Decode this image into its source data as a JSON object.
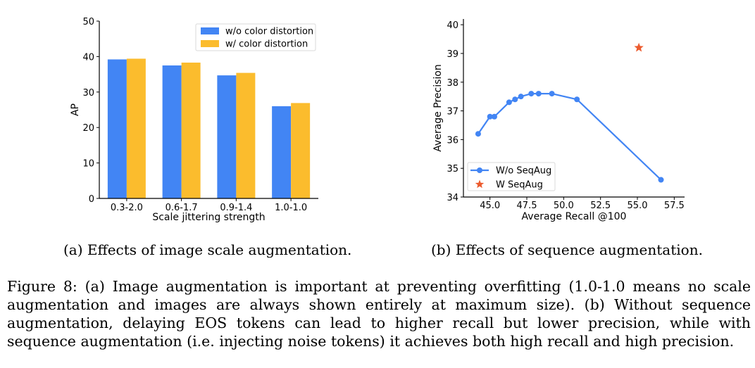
{
  "chart_data": [
    {
      "type": "bar",
      "xlabel": "Scale jittering strength",
      "ylabel": "AP",
      "ylim": [
        0,
        50
      ],
      "yticks": [
        "0",
        "10",
        "20",
        "30",
        "40",
        "50"
      ],
      "categories": [
        "0.3-2.0",
        "0.6-1.7",
        "0.9-1.4",
        "1.0-1.0"
      ],
      "series": [
        {
          "name": "w/o color distortion",
          "color": "#4285f4",
          "values": [
            39.2,
            37.5,
            34.7,
            26.0
          ]
        },
        {
          "name": "w/ color distortion",
          "color": "#fbbc2d",
          "values": [
            39.4,
            38.3,
            35.4,
            26.9
          ]
        }
      ],
      "legend": "top-right",
      "grid": false
    },
    {
      "type": "scatter",
      "xlabel": "Average Recall @100",
      "ylabel": "Average Precision",
      "xlim": [
        43.2,
        58.2
      ],
      "ylim": [
        34,
        40.2
      ],
      "xticks": [
        "45.0",
        "47.5",
        "50.0",
        "52.5",
        "55.0",
        "57.5"
      ],
      "yticks": [
        "34",
        "35",
        "36",
        "37",
        "38",
        "39",
        "40"
      ],
      "series": [
        {
          "name": "W/o SeqAug",
          "color": "#4285f4",
          "marker": "circle-line",
          "points": [
            [
              44.2,
              36.2
            ],
            [
              45.0,
              36.8
            ],
            [
              45.3,
              36.8
            ],
            [
              46.3,
              37.3
            ],
            [
              46.7,
              37.4
            ],
            [
              47.1,
              37.5
            ],
            [
              47.8,
              37.6
            ],
            [
              48.3,
              37.6
            ],
            [
              49.2,
              37.6
            ],
            [
              50.9,
              37.4
            ],
            [
              56.6,
              34.6
            ]
          ]
        },
        {
          "name": "W SeqAug",
          "color": "#ec5b2e",
          "marker": "star",
          "points": [
            [
              55.1,
              39.2
            ]
          ]
        }
      ],
      "legend": "bottom-left",
      "grid": false
    }
  ],
  "captions": {
    "a": "(a) Effects of image scale augmentation.",
    "b": "(b)  Effects of sequence augmentation."
  },
  "figure_caption": "Figure 8:  (a) Image augmentation is important at preventing overfitting (1.0-1.0 means no scale augmentation and images are always shown entirely at maximum size).  (b) Without sequence augmentation, delaying EOS tokens can lead to higher recall but lower precision, while with sequence augmentation (i.e. injecting noise tokens) it achieves both high recall and high precision."
}
